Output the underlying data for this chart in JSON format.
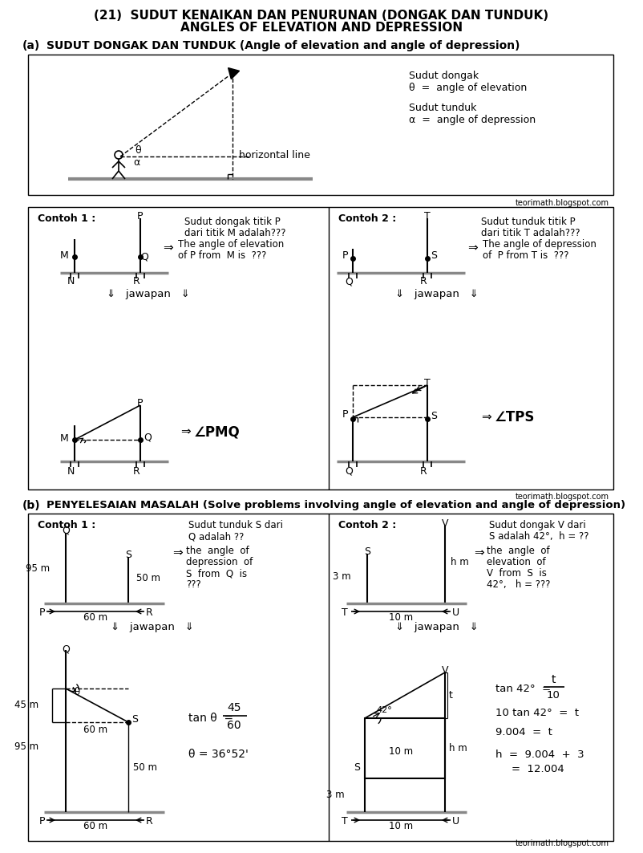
{
  "title_line1": "(21)  SUDUT KENAIKAN DAN PENURUNAN (DONGAK DAN TUNDUK)",
  "title_line2": "ANGLES OF ELEVATION AND DEPRESSION",
  "section_a_label": "(a)",
  "section_a_title": "SUDUT DONGAK DAN TUNDUK (Angle of elevation and angle of depression)",
  "section_b_label": "(b)",
  "section_b_title": "PENYELESAIAN MASALAH (Solve problems involving angle of elevation and angle of depression)",
  "watermark": "teorimath.blogspot.com",
  "bg_color": "#ffffff"
}
